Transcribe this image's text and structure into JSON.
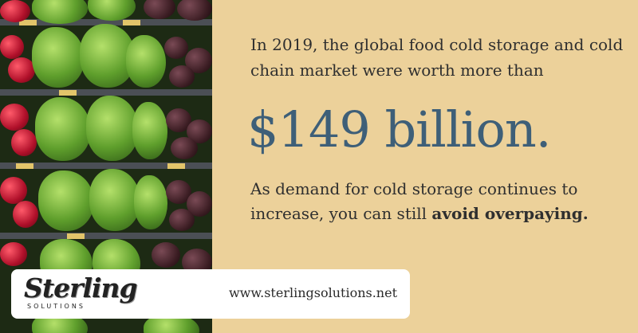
{
  "intro_text": "In 2019, the global food cold storage and cold chain market were worth more than",
  "headline": "$149 billion.",
  "outro_text": "As demand for cold storage continues to increase, you can still",
  "outro_emphasis": "avoid overpaying.",
  "logo": {
    "word": "Sterling",
    "sub": "SOLUTIONS"
  },
  "url": "www.sterlingsolutions.net",
  "colors": {
    "background": "#ecd19a",
    "headline": "#3e5f78",
    "text": "#2f2f2f"
  }
}
